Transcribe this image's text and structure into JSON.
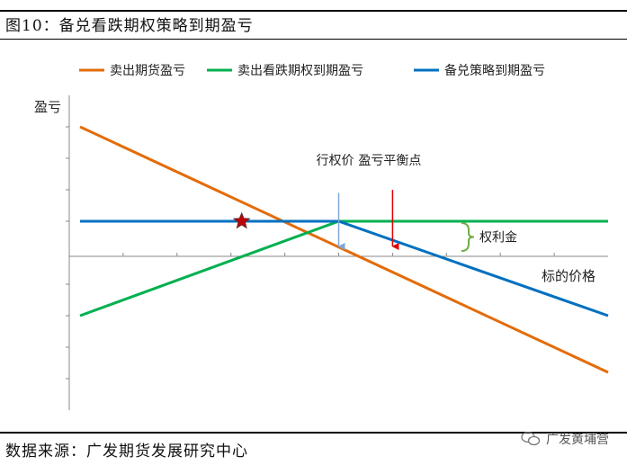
{
  "figure": {
    "title": "图10：备兑看跌期权策略到期盈亏",
    "source": "数据来源：广发期货发展研究中心",
    "watermark": "广发黄埔营"
  },
  "chart_data": {
    "type": "line",
    "title": "",
    "ylabel": "盈亏",
    "xlabel": "标的价格",
    "grid": false,
    "legend_position": "top",
    "xlim": [
      0,
      10
    ],
    "ylim": [
      -5,
      5
    ],
    "strike": 5,
    "premium": 1,
    "series": [
      {
        "name": "卖出期货盈亏",
        "color": "#E36C0A",
        "points": [
          [
            0.2,
            4.0
          ],
          [
            10.0,
            -3.8
          ]
        ]
      },
      {
        "name": "卖出看跌期权到期盈亏",
        "color": "#00B050",
        "points": [
          [
            0.2,
            -2.0
          ],
          [
            5.0,
            1.0
          ],
          [
            10.0,
            1.0
          ]
        ]
      },
      {
        "name": "备兑策略到期盈亏",
        "color": "#0070C0",
        "points": [
          [
            0.2,
            1.0
          ],
          [
            5.0,
            1.0
          ],
          [
            10.0,
            -2.0
          ]
        ]
      }
    ],
    "annotations": [
      {
        "label": "行权价",
        "x": 5.0,
        "color": "#7FA7D9"
      },
      {
        "label": "盈亏平衡点",
        "x": 6.0,
        "color": "#E00000"
      },
      {
        "label": "权利金",
        "bracket_from": 0,
        "bracket_to": 1,
        "color": "#70AD47"
      }
    ],
    "marker": {
      "shape": "star",
      "x": 3.2,
      "y": 1.0,
      "color": "#C00000"
    }
  }
}
